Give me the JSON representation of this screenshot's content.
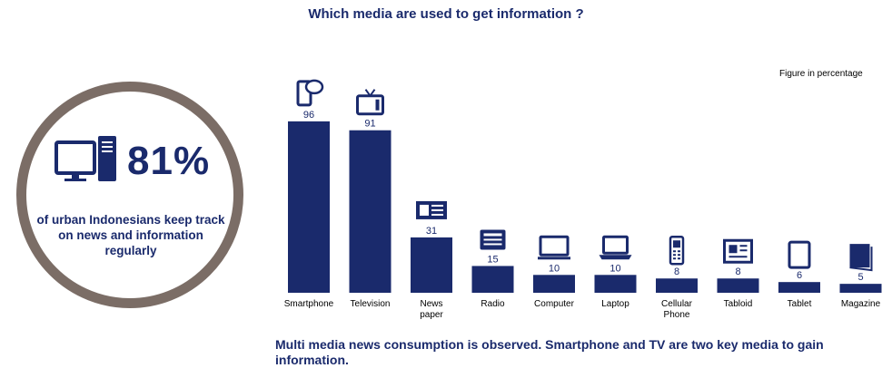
{
  "title": "Which media are used to get information ?",
  "note": "Figure in percentage",
  "highlight": {
    "value": "81%",
    "text": "of urban Indonesians keep track on news and information regularly",
    "icon": "desktop-computer-icon"
  },
  "footer": "Multi media news consumption is observed. Smartphone and TV are two key media to gain information.",
  "colors": {
    "bar": "#1a2a6c",
    "circle_border": "#7b6d66"
  },
  "chart_data": {
    "type": "bar",
    "categories": [
      "Smartphone",
      "Television",
      "News paper",
      "Radio",
      "Computer",
      "Laptop",
      "Cellular Phone",
      "Tabloid",
      "Tablet",
      "Magazine"
    ],
    "values": [
      96,
      91,
      31,
      15,
      10,
      10,
      8,
      8,
      6,
      5
    ],
    "icons": [
      "smartphone-icon",
      "television-icon",
      "newspaper-icon",
      "radio-icon",
      "computer-icon",
      "laptop-icon",
      "cellular-phone-icon",
      "tabloid-icon",
      "tablet-icon",
      "magazine-icon"
    ],
    "ylim": [
      0,
      100
    ],
    "xlabel": "",
    "ylabel": "",
    "grid": false,
    "legend": "none"
  }
}
